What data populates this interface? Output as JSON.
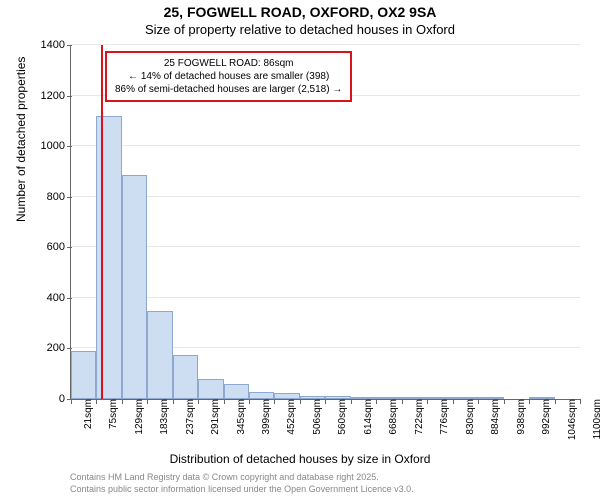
{
  "chart": {
    "type": "histogram",
    "title_line1": "25, FOGWELL ROAD, OXFORD, OX2 9SA",
    "title_line2": "Size of property relative to detached houses in Oxford",
    "title_fontsize": 14,
    "subtitle_fontsize": 13,
    "xlabel": "Distribution of detached houses by size in Oxford",
    "ylabel": "Number of detached properties",
    "label_fontsize": 12,
    "tick_fontsize": 11,
    "xtick_fontsize": 10,
    "background_color": "#ffffff",
    "grid_color": "#e8e8e8",
    "axis_color": "#666666",
    "bar_fill": "#cdddf2",
    "bar_border": "#8fa8cf",
    "marker_color": "#d9121b",
    "marker_value_sqm": 86,
    "xlim": [
      21,
      1100
    ],
    "ylim": [
      0,
      1400
    ],
    "ytick_step": 200,
    "yticks": [
      0,
      200,
      400,
      600,
      800,
      1000,
      1200,
      1400
    ],
    "xticks": [
      21,
      75,
      129,
      183,
      237,
      291,
      345,
      399,
      452,
      506,
      560,
      614,
      668,
      722,
      776,
      830,
      884,
      938,
      992,
      1046,
      1100
    ],
    "bars": [
      {
        "x0": 21,
        "x1": 75,
        "count": 190
      },
      {
        "x0": 75,
        "x1": 129,
        "count": 1120
      },
      {
        "x0": 129,
        "x1": 183,
        "count": 885
      },
      {
        "x0": 183,
        "x1": 237,
        "count": 350
      },
      {
        "x0": 237,
        "x1": 291,
        "count": 175
      },
      {
        "x0": 291,
        "x1": 345,
        "count": 80
      },
      {
        "x0": 345,
        "x1": 399,
        "count": 60
      },
      {
        "x0": 399,
        "x1": 452,
        "count": 28
      },
      {
        "x0": 452,
        "x1": 506,
        "count": 22
      },
      {
        "x0": 506,
        "x1": 560,
        "count": 12
      },
      {
        "x0": 560,
        "x1": 614,
        "count": 10
      },
      {
        "x0": 614,
        "x1": 668,
        "count": 8
      },
      {
        "x0": 668,
        "x1": 722,
        "count": 3
      },
      {
        "x0": 722,
        "x1": 776,
        "count": 2
      },
      {
        "x0": 776,
        "x1": 830,
        "count": 2
      },
      {
        "x0": 830,
        "x1": 884,
        "count": 1
      },
      {
        "x0": 884,
        "x1": 938,
        "count": 1
      },
      {
        "x0": 938,
        "x1": 992,
        "count": 0
      },
      {
        "x0": 992,
        "x1": 1046,
        "count": 1
      },
      {
        "x0": 1046,
        "x1": 1100,
        "count": 0
      }
    ],
    "legend": {
      "line1": "25 FOGWELL ROAD: 86sqm",
      "line2": "← 14% of detached houses are smaller (398)",
      "line3": "86% of semi-detached houses are larger (2,518) →",
      "border_color": "#d9121b",
      "bg_color": "#ffffff",
      "fontsize": 10
    },
    "footer": {
      "line1": "Contains HM Land Registry data © Crown copyright and database right 2025.",
      "line2": "Contains public sector information licensed under the Open Government Licence v3.0.",
      "color": "#888888",
      "fontsize": 9
    }
  }
}
